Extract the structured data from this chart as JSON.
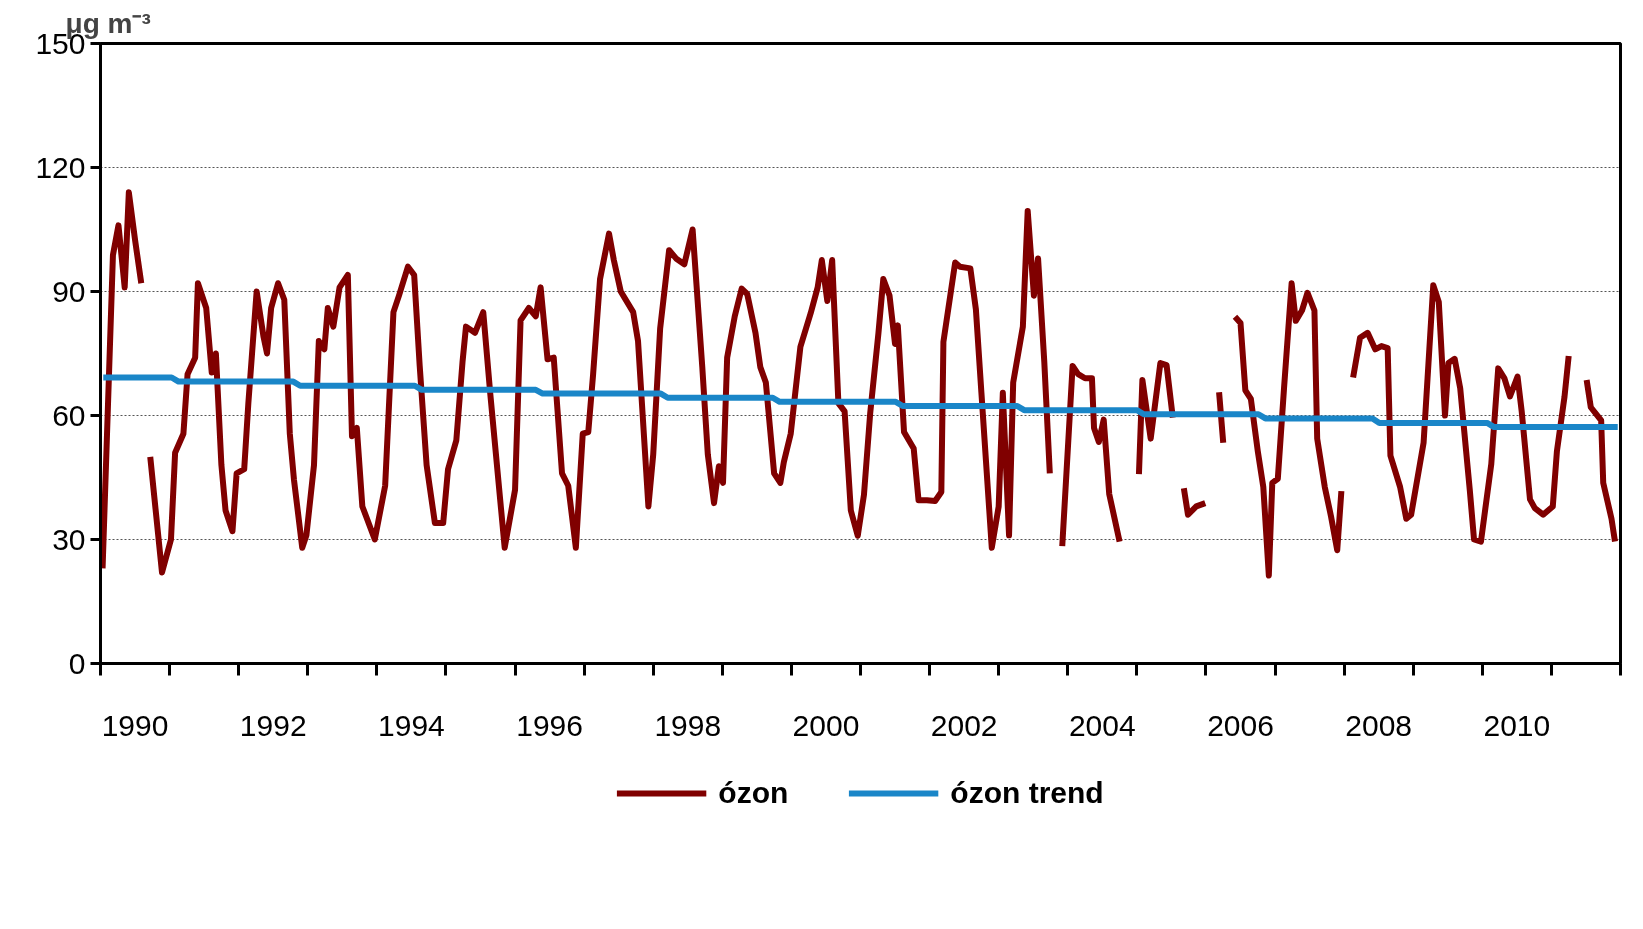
{
  "chart_data": {
    "type": "line",
    "ylabel": "μg m⁻³",
    "xlim": [
      1990,
      2012
    ],
    "ylim": [
      0,
      150
    ],
    "yticks": [
      0,
      30,
      60,
      90,
      120,
      150
    ],
    "xticks": [
      {
        "value": 1990,
        "label": null
      },
      {
        "value": 1990.5,
        "label": "1990"
      },
      {
        "value": 1991,
        "label": null
      },
      {
        "value": 1992,
        "label": null
      },
      {
        "value": 1992.5,
        "label": "1992"
      },
      {
        "value": 1993,
        "label": null
      },
      {
        "value": 1994,
        "label": null
      },
      {
        "value": 1994.5,
        "label": "1994"
      },
      {
        "value": 1995,
        "label": null
      },
      {
        "value": 1996,
        "label": null
      },
      {
        "value": 1996.5,
        "label": "1996"
      },
      {
        "value": 1997,
        "label": null
      },
      {
        "value": 1998,
        "label": null
      },
      {
        "value": 1998.5,
        "label": "1998"
      },
      {
        "value": 1999,
        "label": null
      },
      {
        "value": 2000,
        "label": null
      },
      {
        "value": 2000.5,
        "label": "2000"
      },
      {
        "value": 2001,
        "label": null
      },
      {
        "value": 2002,
        "label": null
      },
      {
        "value": 2002.5,
        "label": "2002"
      },
      {
        "value": 2003,
        "label": null
      },
      {
        "value": 2004,
        "label": null
      },
      {
        "value": 2004.5,
        "label": "2004"
      },
      {
        "value": 2005,
        "label": null
      },
      {
        "value": 2006,
        "label": null
      },
      {
        "value": 2006.5,
        "label": "2006"
      },
      {
        "value": 2007,
        "label": null
      },
      {
        "value": 2008,
        "label": null
      },
      {
        "value": 2008.5,
        "label": "2008"
      },
      {
        "value": 2009,
        "label": null
      },
      {
        "value": 2010,
        "label": null
      },
      {
        "value": 2010.5,
        "label": "2010"
      },
      {
        "value": 2011,
        "label": null
      },
      {
        "value": 2012,
        "label": null
      }
    ],
    "grid": "y",
    "legend": "bottom",
    "series": [
      {
        "name": "ózon",
        "color": "#800000",
        "x": [
          1990.03,
          1990.18,
          1990.26,
          1990.35,
          1990.41,
          1990.5,
          1990.59,
          1990.65,
          1990.72,
          1990.89,
          1991.02,
          1991.08,
          1991.2,
          1991.26,
          1991.37,
          1991.41,
          1991.53,
          1991.61,
          1991.67,
          1991.75,
          1991.81,
          1991.91,
          1991.97,
          1992.08,
          1992.14,
          1992.26,
          1992.36,
          1992.41,
          1992.47,
          1992.57,
          1992.66,
          1992.74,
          1992.8,
          1992.92,
          1992.98,
          1993.09,
          1993.16,
          1993.24,
          1993.29,
          1993.37,
          1993.46,
          1993.58,
          1993.64,
          1993.71,
          1993.79,
          1993.97,
          1994.12,
          1994.24,
          1994.32,
          1994.45,
          1994.54,
          1994.62,
          1994.72,
          1994.84,
          1994.96,
          1995.03,
          1995.15,
          1995.24,
          1995.29,
          1995.42,
          1995.54,
          1995.64,
          1995.85,
          1996.0,
          1996.08,
          1996.2,
          1996.3,
          1996.37,
          1996.47,
          1996.56,
          1996.68,
          1996.77,
          1996.88,
          1996.98,
          1997.06,
          1997.13,
          1997.23,
          1997.36,
          1997.43,
          1997.53,
          1997.71,
          1997.78,
          1997.93,
          1998.0,
          1998.1,
          1998.23,
          1998.33,
          1998.45,
          1998.57,
          1998.71,
          1998.79,
          1998.88,
          1998.95,
          1999.01,
          1999.07,
          1999.18,
          1999.28,
          1999.36,
          1999.48,
          1999.55,
          1999.63,
          1999.75,
          1999.84,
          1999.89,
          1999.99,
          2000.13,
          2000.28,
          2000.38,
          2000.44,
          2000.52,
          2000.59,
          2000.68,
          2000.77,
          2000.86,
          2000.96,
          2001.05,
          2001.14,
          2001.26,
          2001.33,
          2001.42,
          2001.5,
          2001.54,
          2001.63,
          2001.77,
          2001.84,
          2001.96,
          2002.08,
          2002.17,
          2002.2,
          2002.37,
          2002.44,
          2002.59,
          2002.67,
          2002.75,
          2002.9,
          2003.0,
          2003.06,
          2003.15,
          2003.21,
          2003.35,
          2003.42,
          2003.51,
          2003.57,
          2003.66,
          2003.74,
          2003.83,
          2003.92,
          2004.07,
          2004.15,
          2004.25,
          2004.35,
          2004.38,
          2004.45,
          2004.52,
          2004.6,
          2004.75,
          2004.9,
          2005.03,
          2005.08,
          2005.2,
          2005.34,
          2005.43,
          2005.52,
          2005.6,
          2005.68,
          2005.74,
          2005.86,
          2005.99,
          2006.1,
          2006.19,
          2006.25,
          2006.35,
          2006.42,
          2006.5,
          2006.57,
          2006.65,
          2006.75,
          2006.83,
          2006.91,
          2006.96,
          2007.04,
          2007.13,
          2007.24,
          2007.3,
          2007.39,
          2007.47,
          2007.57,
          2007.61,
          2007.72,
          2007.81,
          2007.9,
          2007.96,
          2008.05,
          2008.13,
          2008.23,
          2008.34,
          2008.45,
          2008.54,
          2008.63,
          2008.67,
          2008.81,
          2008.9,
          2008.97,
          2009.15,
          2009.29,
          2009.37,
          2009.46,
          2009.51,
          2009.6,
          2009.68,
          2009.82,
          2009.88,
          2009.98,
          2010.13,
          2010.23,
          2010.32,
          2010.4,
          2010.51,
          2010.57,
          2010.69,
          2010.76,
          2010.88,
          2011.02,
          2011.08,
          2011.19,
          2011.25,
          2011.38,
          2011.51,
          2011.57,
          2011.72,
          2011.75,
          2011.87,
          2011.92
        ],
        "values": [
          23,
          98.8,
          106,
          91,
          114,
          102.5,
          92,
          null,
          50,
          22,
          30,
          51,
          55.6,
          70,
          74,
          92,
          86,
          70.4,
          75,
          48,
          37,
          32,
          46,
          47,
          63,
          90,
          79,
          75,
          86,
          92,
          88,
          55.6,
          44.5,
          28,
          31,
          48,
          78,
          76,
          86,
          81.5,
          91,
          94,
          55,
          57,
          38,
          30,
          43,
          85,
          89,
          96,
          94,
          72,
          48,
          34,
          34,
          47,
          54,
          73,
          81.5,
          80,
          85,
          65.5,
          28,
          42,
          83,
          86,
          84,
          91,
          73.6,
          74,
          46,
          43,
          28,
          55.6,
          56,
          70,
          93,
          104,
          97.6,
          90,
          85,
          78,
          38,
          50.6,
          81,
          100,
          98,
          96.6,
          105,
          71.7,
          50.6,
          38.8,
          47.7,
          43.7,
          74,
          84,
          90.7,
          89.4,
          80,
          71.7,
          68,
          46,
          43.7,
          48.7,
          55.6,
          76.6,
          84.8,
          91,
          97.6,
          87.7,
          97.6,
          63,
          61,
          37,
          30.9,
          40.8,
          60.5,
          80,
          93,
          89,
          77.3,
          81.8,
          56,
          52,
          39.5,
          39.5,
          39.3,
          41.5,
          77.8,
          97,
          96,
          95.6,
          85.7,
          65.5,
          28,
          38,
          65.5,
          31,
          68,
          81.5,
          109.5,
          89,
          98,
          73,
          46,
          null,
          28.4,
          72,
          70,
          69,
          69,
          57,
          53.6,
          59,
          41,
          29.5,
          null,
          45.8,
          68.6,
          54.4,
          72.7,
          72.2,
          59.5,
          null,
          42.4,
          36,
          38,
          38.8,
          null,
          65.6,
          53.4,
          null,
          83.9,
          82.4,
          66.1,
          64,
          51.4,
          42.7,
          21.3,
          43.7,
          44.7,
          66.6,
          92,
          82.9,
          85.4,
          89.7,
          85.4,
          54.4,
          42.7,
          35.6,
          27.4,
          41.7,
          null,
          69.2,
          78.8,
          80,
          76,
          76.8,
          76.3,
          50.3,
          42.7,
          35,
          36,
          53.4,
          91.5,
          87.5,
          60,
          72.7,
          73.7,
          66.6,
          41.7,
          30,
          29.5,
          48.3,
          71.4,
          69,
          64.6,
          69.4,
          61,
          39.7,
          37.6,
          36,
          38,
          51.4,
          64.6,
          74.4,
          null,
          68.6,
          62,
          58.8,
          43.7,
          35,
          29.5
        ]
      },
      {
        "name": "ózon trend",
        "color": "#1a86c8",
        "x": [
          1990.04,
          1991.03,
          1991.13,
          1992.79,
          1992.89,
          1994.55,
          1994.65,
          1996.3,
          1996.4,
          1998.11,
          1998.21,
          1999.73,
          1999.83,
          2001.51,
          2001.61,
          2003.27,
          2003.37,
          2005.0,
          2005.1,
          2006.76,
          2006.86,
          2008.41,
          2008.51,
          2010.07,
          2010.17,
          2011.96
        ],
        "values": [
          69.2,
          69.2,
          68.2,
          68.2,
          67.2,
          67.2,
          66.2,
          66.2,
          65.3,
          65.3,
          64.3,
          64.3,
          63.3,
          63.3,
          62.3,
          62.3,
          61.3,
          61.3,
          60.3,
          60.3,
          59.3,
          59.3,
          58.2,
          58.2,
          57.2,
          57.2
        ]
      }
    ]
  }
}
